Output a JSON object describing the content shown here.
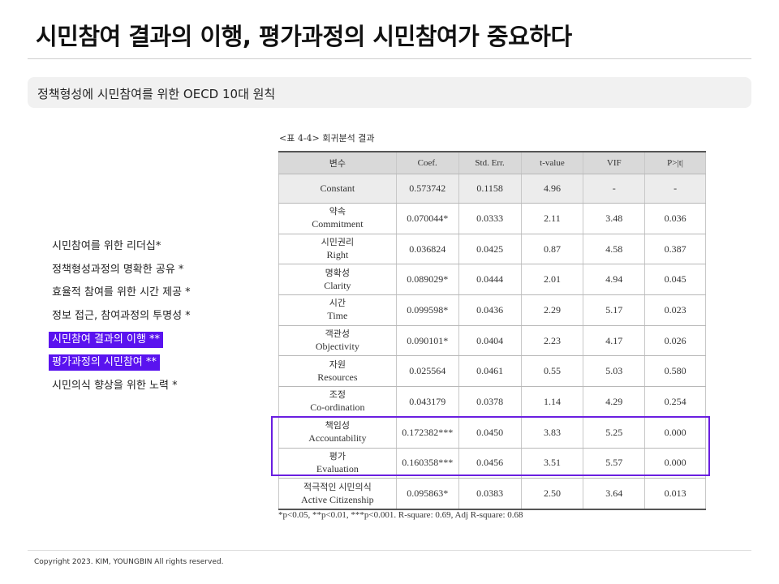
{
  "header": {
    "title": "시민참여 결과의 이행, 평가과정의 시민참여가 중요하다"
  },
  "subtitle": "정책형성에 시민참여를 위한 OECD 10대 원칙",
  "principles": [
    {
      "text": "시민참여를 위한 리더십*",
      "highlighted": false
    },
    {
      "text": "정책형성과정의 명확한 공유 *",
      "highlighted": false
    },
    {
      "text": "효율적 참여를 위한 시간 제공 *",
      "highlighted": false
    },
    {
      "text": "정보 접근, 참여과정의 투명성 *",
      "highlighted": false
    },
    {
      "text": "시민참여 결과의 이행 **",
      "highlighted": true
    },
    {
      "text": "평가과정의 시민참여 **",
      "highlighted": true
    },
    {
      "text": "시민의식 향상을 위한 노력 *",
      "highlighted": false
    }
  ],
  "highlight_color": "#5a13ef",
  "box_color": "#6a1fe0",
  "table": {
    "caption": "<표 4-4> 회귀분석 결과",
    "headers": [
      "변수",
      "Coef.",
      "Std. Err.",
      "t-value",
      "VIF",
      "P>|t|"
    ],
    "constant": {
      "var": "Constant",
      "coef": "0.573742",
      "se": "0.1158",
      "t": "4.96",
      "vif": "-",
      "p": "-"
    },
    "rows": [
      {
        "ko": "약속",
        "en": "Commitment",
        "coef": "0.070044*",
        "se": "0.0333",
        "t": "2.11",
        "vif": "3.48",
        "p": "0.036"
      },
      {
        "ko": "시민권리",
        "en": "Right",
        "coef": "0.036824",
        "se": "0.0425",
        "t": "0.87",
        "vif": "4.58",
        "p": "0.387"
      },
      {
        "ko": "명확성",
        "en": "Clarity",
        "coef": "0.089029*",
        "se": "0.0444",
        "t": "2.01",
        "vif": "4.94",
        "p": "0.045"
      },
      {
        "ko": "시간",
        "en": "Time",
        "coef": "0.099598*",
        "se": "0.0436",
        "t": "2.29",
        "vif": "5.17",
        "p": "0.023"
      },
      {
        "ko": "객관성",
        "en": "Objectivity",
        "coef": "0.090101*",
        "se": "0.0404",
        "t": "2.23",
        "vif": "4.17",
        "p": "0.026"
      },
      {
        "ko": "자원",
        "en": "Resources",
        "coef": "0.025564",
        "se": "0.0461",
        "t": "0.55",
        "vif": "5.03",
        "p": "0.580"
      },
      {
        "ko": "조정",
        "en": "Co-ordination",
        "coef": "0.043179",
        "se": "0.0378",
        "t": "1.14",
        "vif": "4.29",
        "p": "0.254"
      },
      {
        "ko": "책임성",
        "en": "Accountability",
        "coef": "0.172382***",
        "se": "0.0450",
        "t": "3.83",
        "vif": "5.25",
        "p": "0.000"
      },
      {
        "ko": "평가",
        "en": "Evaluation",
        "coef": "0.160358***",
        "se": "0.0456",
        "t": "3.51",
        "vif": "5.57",
        "p": "0.000"
      },
      {
        "ko": "적극적인 시민의식",
        "en": "Active Citizenship",
        "coef": "0.095863*",
        "se": "0.0383",
        "t": "2.50",
        "vif": "3.64",
        "p": "0.013"
      }
    ],
    "note": "*p<0.05, **p<0.01, ***p<0.001. R-square: 0.69, Adj R-square: 0.68"
  },
  "footer": {
    "copyright": "Copyright 2023. KIM, YOUNGBIN All rights reserved."
  }
}
